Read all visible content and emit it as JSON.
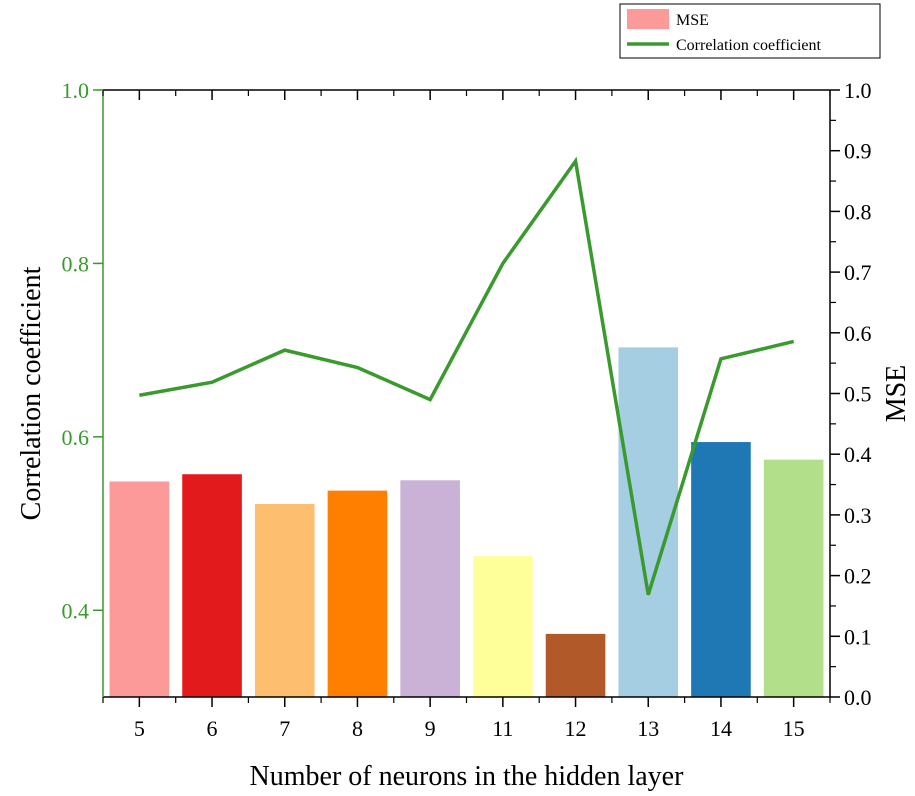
{
  "chart_data": {
    "type": "bar",
    "categories": [
      "5",
      "6",
      "7",
      "8",
      "9",
      "11",
      "12",
      "13",
      "14",
      "15"
    ],
    "series": [
      {
        "name": "MSE",
        "type": "bar",
        "axis": "right",
        "values": [
          0.355,
          0.367,
          0.318,
          0.34,
          0.357,
          0.232,
          0.104,
          0.576,
          0.42,
          0.391
        ],
        "colors": [
          "#fb9a99",
          "#e31a1c",
          "#fdbf6f",
          "#ff7f00",
          "#cab2d6",
          "#ffff99",
          "#b15928",
          "#a6cee3",
          "#1f78b4",
          "#b2df8a"
        ]
      },
      {
        "name": "Correlation coefficient",
        "type": "line",
        "axis": "left",
        "color": "#3a9a2e",
        "values": [
          0.648,
          0.663,
          0.7,
          0.68,
          0.643,
          0.8,
          0.918,
          0.418,
          0.69,
          0.71
        ]
      }
    ],
    "xlabel": "Number of neurons in the hidden layer",
    "ylabel_left": "Correlation coefficient",
    "ylabel_right": "MSE",
    "ylim_left": [
      0.3,
      1.0
    ],
    "yticks_left": [
      "0.4",
      "0.6",
      "0.8",
      "1.0"
    ],
    "ylim_right": [
      0.0,
      1.0
    ],
    "yticks_right": [
      "0.0",
      "0.1",
      "0.2",
      "0.3",
      "0.4",
      "0.5",
      "0.6",
      "0.7",
      "0.8",
      "0.9",
      "1.0"
    ],
    "legend_position": "top-right",
    "left_axis_color": "#3a9a2e",
    "axis_color": "#000000"
  }
}
